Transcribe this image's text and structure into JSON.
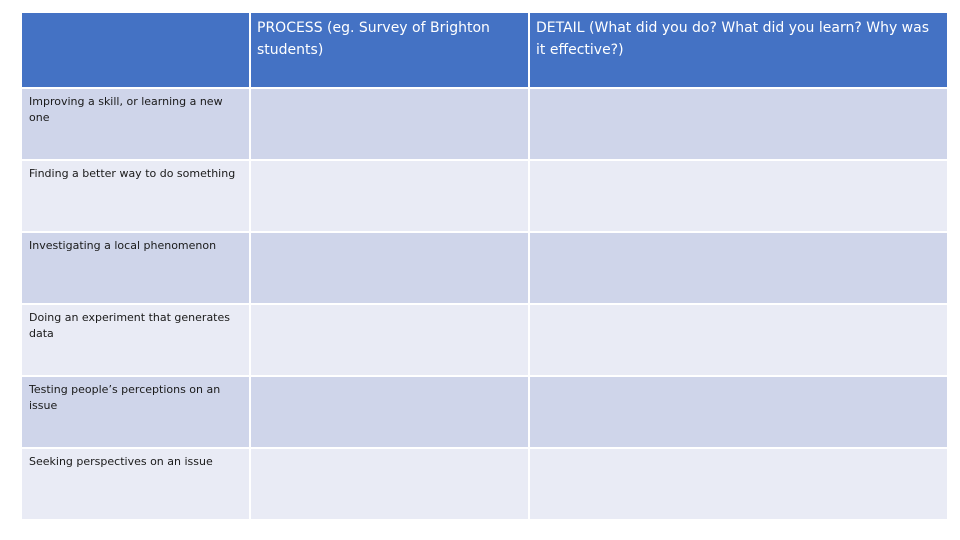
{
  "table": {
    "headers": {
      "first": "",
      "process": "PROCESS (eg. Survey of Brighton students)",
      "detail": "DETAIL (What did you do? What did you learn? Why was it effective?)"
    },
    "rows": [
      {
        "label": "Improving a skill, or learning a new one",
        "process": "",
        "detail": ""
      },
      {
        "label": "Finding a better way to do something",
        "process": "",
        "detail": ""
      },
      {
        "label": "Investigating a local phenomenon",
        "process": "",
        "detail": ""
      },
      {
        "label": "Doing an experiment that generates data",
        "process": "",
        "detail": ""
      },
      {
        "label": "Testing people’s perceptions on an issue",
        "process": "",
        "detail": ""
      },
      {
        "label": "Seeking perspectives on an issue",
        "process": "",
        "detail": ""
      }
    ]
  },
  "colors": {
    "header": "#4472c4",
    "row_dark": "#cfd5ea",
    "row_light": "#e9ebf5"
  }
}
